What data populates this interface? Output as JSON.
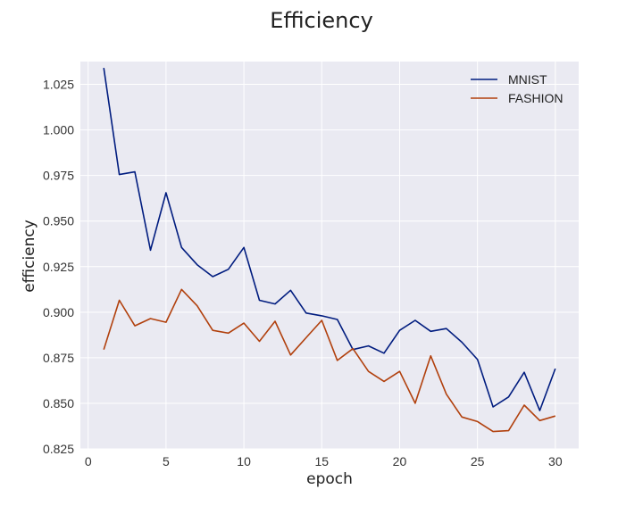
{
  "chart_data": {
    "type": "line",
    "title": "Efficiency",
    "xlabel": "epoch",
    "ylabel": "efficiency",
    "xlim": [
      -0.5,
      31.5
    ],
    "ylim": [
      0.825,
      1.0375
    ],
    "x_ticks": [
      0,
      5,
      10,
      15,
      20,
      25,
      30
    ],
    "y_ticks": [
      0.825,
      0.85,
      0.875,
      0.9,
      0.925,
      0.95,
      0.975,
      1.0,
      1.025
    ],
    "y_tick_labels": [
      "0.825",
      "0.850",
      "0.875",
      "0.900",
      "0.925",
      "0.950",
      "0.975",
      "1.000",
      "1.025"
    ],
    "grid": true,
    "background_color": "#eaeaf2",
    "legend_position": "top-right",
    "x": [
      1,
      2,
      3,
      4,
      5,
      6,
      7,
      8,
      9,
      10,
      11,
      12,
      13,
      14,
      15,
      16,
      17,
      18,
      19,
      20,
      21,
      22,
      23,
      24,
      25,
      26,
      27,
      28,
      29,
      30
    ],
    "series": [
      {
        "name": "MNIST",
        "color": "#001c7f",
        "values": [
          1.034,
          0.9755,
          0.977,
          0.934,
          0.9655,
          0.9355,
          0.926,
          0.9195,
          0.9235,
          0.9355,
          0.9065,
          0.9045,
          0.912,
          0.8995,
          0.898,
          0.896,
          0.8795,
          0.8815,
          0.8775,
          0.89,
          0.8955,
          0.8895,
          0.891,
          0.8835,
          0.874,
          0.848,
          0.8535,
          0.867,
          0.846,
          0.869
        ]
      },
      {
        "name": "FASHION",
        "color": "#b1400d",
        "values": [
          0.8795,
          0.9065,
          0.8925,
          0.8965,
          0.8945,
          0.9125,
          0.9035,
          0.89,
          0.8885,
          0.894,
          0.884,
          0.895,
          0.8765,
          0.886,
          0.8955,
          0.8735,
          0.88,
          0.8675,
          0.862,
          0.8675,
          0.85,
          0.876,
          0.855,
          0.8425,
          0.84,
          0.8345,
          0.835,
          0.849,
          0.8405,
          0.843
        ]
      }
    ]
  }
}
